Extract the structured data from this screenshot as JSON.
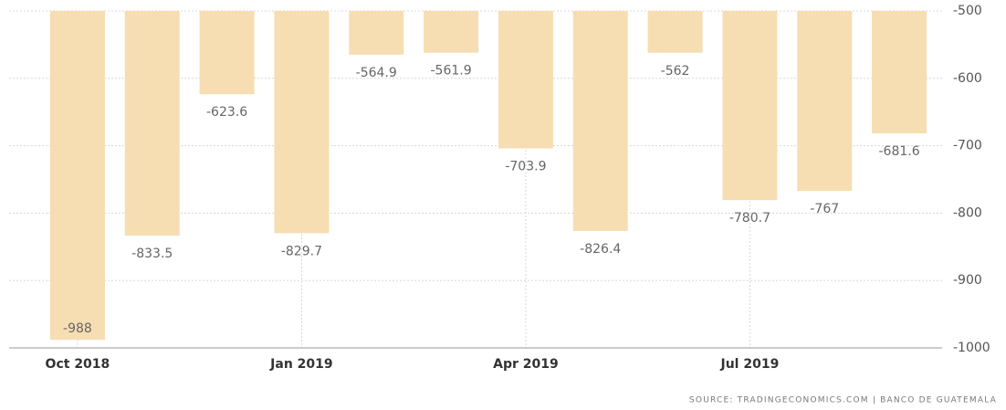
{
  "chart_data": {
    "type": "bar",
    "categories": [
      "Oct 2018",
      null,
      null,
      "Jan 2019",
      null,
      null,
      "Apr 2019",
      null,
      null,
      "Jul 2019",
      null,
      null
    ],
    "values": [
      -988,
      -833.5,
      -623.6,
      -829.7,
      -564.9,
      -561.9,
      -703.9,
      -826.4,
      -562,
      -780.7,
      -767,
      -681.6
    ],
    "color": "#f6deb2",
    "ylim": [
      -1000,
      -500
    ],
    "yticks": [
      -1000,
      -900,
      -800,
      -700,
      -600,
      -500
    ],
    "grid": true,
    "source": "SOURCE: TRADINGECONOMICS.COM | BANCO DE GUATEMALA"
  }
}
